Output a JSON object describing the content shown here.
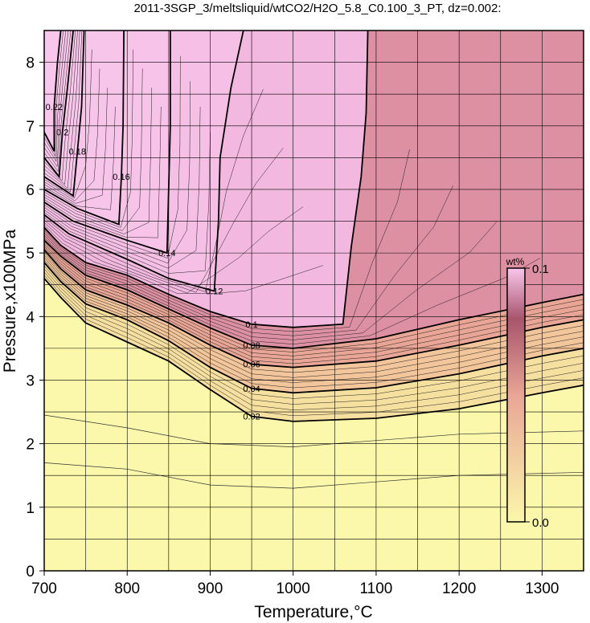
{
  "chart_data": {
    "type": "contour",
    "title": "2011-3SGP_3/meltsliquid/wtCO2/H2O_5.8_C0.100_3_PT, dz=0.002:",
    "xlabel": "Temperature,°C",
    "ylabel": "Pressure,x100MPa",
    "xlim": [
      700,
      1350
    ],
    "ylim": [
      0,
      8.5
    ],
    "x_ticks": [
      700,
      800,
      900,
      1000,
      1100,
      1200,
      1300
    ],
    "y_ticks": [
      0,
      1,
      2,
      3,
      4,
      5,
      6,
      7,
      8
    ],
    "grid": true,
    "colorbar": {
      "label": "wt%",
      "min_label": "0.0",
      "max_label": "0.1",
      "min": 0.0,
      "max": 0.1
    },
    "contour_interval": 0.002,
    "colors": {
      "low": "#fbf7ab",
      "high": "#f9c6ec",
      "mid": "#e9a596",
      "dark": "#a8556b",
      "grid": "#000000"
    },
    "contours": [
      {
        "label": "0.02",
        "value": 0.02,
        "points": [
          [
            700,
            4.6
          ],
          [
            720,
            4.3
          ],
          [
            750,
            3.9
          ],
          [
            800,
            3.6
          ],
          [
            850,
            3.3
          ],
          [
            900,
            2.85
          ],
          [
            950,
            2.43
          ],
          [
            1000,
            2.35
          ],
          [
            1100,
            2.4
          ],
          [
            1200,
            2.55
          ],
          [
            1300,
            2.8
          ],
          [
            1350,
            2.92
          ]
        ]
      },
      {
        "label": "0.04",
        "value": 0.04,
        "points": [
          [
            700,
            4.85
          ],
          [
            720,
            4.55
          ],
          [
            750,
            4.2
          ],
          [
            800,
            3.95
          ],
          [
            850,
            3.62
          ],
          [
            900,
            3.2
          ],
          [
            950,
            2.87
          ],
          [
            1000,
            2.8
          ],
          [
            1100,
            2.88
          ],
          [
            1200,
            3.1
          ],
          [
            1300,
            3.38
          ],
          [
            1350,
            3.5
          ]
        ]
      },
      {
        "label": "0.06",
        "value": 0.06,
        "points": [
          [
            700,
            5.05
          ],
          [
            720,
            4.75
          ],
          [
            750,
            4.42
          ],
          [
            800,
            4.18
          ],
          [
            850,
            3.9
          ],
          [
            900,
            3.55
          ],
          [
            950,
            3.25
          ],
          [
            1000,
            3.2
          ],
          [
            1100,
            3.3
          ],
          [
            1200,
            3.55
          ],
          [
            1300,
            3.83
          ],
          [
            1350,
            3.95
          ]
        ]
      },
      {
        "label": "0.08",
        "value": 0.08,
        "points": [
          [
            700,
            5.2
          ],
          [
            720,
            4.95
          ],
          [
            750,
            4.65
          ],
          [
            800,
            4.42
          ],
          [
            850,
            4.12
          ],
          [
            900,
            3.82
          ],
          [
            950,
            3.55
          ],
          [
            1000,
            3.5
          ],
          [
            1100,
            3.65
          ],
          [
            1200,
            3.95
          ],
          [
            1300,
            4.22
          ],
          [
            1350,
            4.35
          ]
        ]
      },
      {
        "label": "0.1",
        "value": 0.1,
        "points": [
          [
            700,
            5.4
          ],
          [
            720,
            5.12
          ],
          [
            750,
            4.85
          ],
          [
            800,
            4.65
          ],
          [
            850,
            4.35
          ],
          [
            900,
            4.08
          ],
          [
            950,
            3.88
          ],
          [
            1000,
            3.83
          ],
          [
            1060,
            3.88
          ],
          [
            1070,
            5.1
          ],
          [
            1082,
            6.2
          ],
          [
            1088,
            7.2
          ],
          [
            1090,
            8.5
          ]
        ]
      },
      {
        "label": "0.12",
        "value": 0.12,
        "points": [
          [
            700,
            5.6
          ],
          [
            730,
            5.3
          ],
          [
            800,
            4.9
          ],
          [
            850,
            4.6
          ],
          [
            905,
            4.4
          ],
          [
            910,
            5.5
          ],
          [
            912,
            6.5
          ],
          [
            925,
            7.6
          ],
          [
            940,
            8.5
          ]
        ]
      },
      {
        "label": "0.14",
        "value": 0.14,
        "points": [
          [
            700,
            5.8
          ],
          [
            735,
            5.5
          ],
          [
            800,
            5.2
          ],
          [
            848,
            5.0
          ],
          [
            850,
            6.0
          ],
          [
            852,
            7.0
          ],
          [
            852,
            8.5
          ]
        ]
      },
      {
        "label": "0.16",
        "value": 0.16,
        "points": [
          [
            700,
            6.0
          ],
          [
            740,
            5.7
          ],
          [
            790,
            5.45
          ],
          [
            793,
            6.2
          ],
          [
            795,
            7.0
          ],
          [
            796,
            8.5
          ]
        ]
      },
      {
        "label": "0.18",
        "value": 0.18,
        "points": [
          [
            700,
            6.2
          ],
          [
            735,
            5.9
          ],
          [
            740,
            6.6
          ],
          [
            745,
            7.3
          ],
          [
            748,
            8.5
          ]
        ]
      },
      {
        "label": "0.2",
        "value": 0.2,
        "points": [
          [
            700,
            6.5
          ],
          [
            718,
            6.2
          ],
          [
            722,
            6.9
          ],
          [
            728,
            7.6
          ],
          [
            735,
            8.5
          ]
        ]
      },
      {
        "label": "0.22",
        "value": 0.22,
        "points": [
          [
            700,
            6.9
          ],
          [
            712,
            6.6
          ],
          [
            712,
            7.3
          ],
          [
            716,
            8.0
          ],
          [
            720,
            8.5
          ]
        ]
      }
    ],
    "background_contours": {
      "low_region": [
        [
          700,
          1.7
        ],
        [
          800,
          1.6
        ],
        [
          900,
          1.35
        ],
        [
          1000,
          1.3
        ],
        [
          1100,
          1.4
        ],
        [
          1200,
          1.5
        ],
        [
          1350,
          1.55
        ]
      ],
      "step_region": [
        [
          700,
          2.45
        ],
        [
          800,
          2.25
        ],
        [
          900,
          2.0
        ],
        [
          1000,
          1.95
        ],
        [
          1100,
          2.05
        ],
        [
          1200,
          2.15
        ],
        [
          1350,
          2.2
        ]
      ]
    }
  }
}
